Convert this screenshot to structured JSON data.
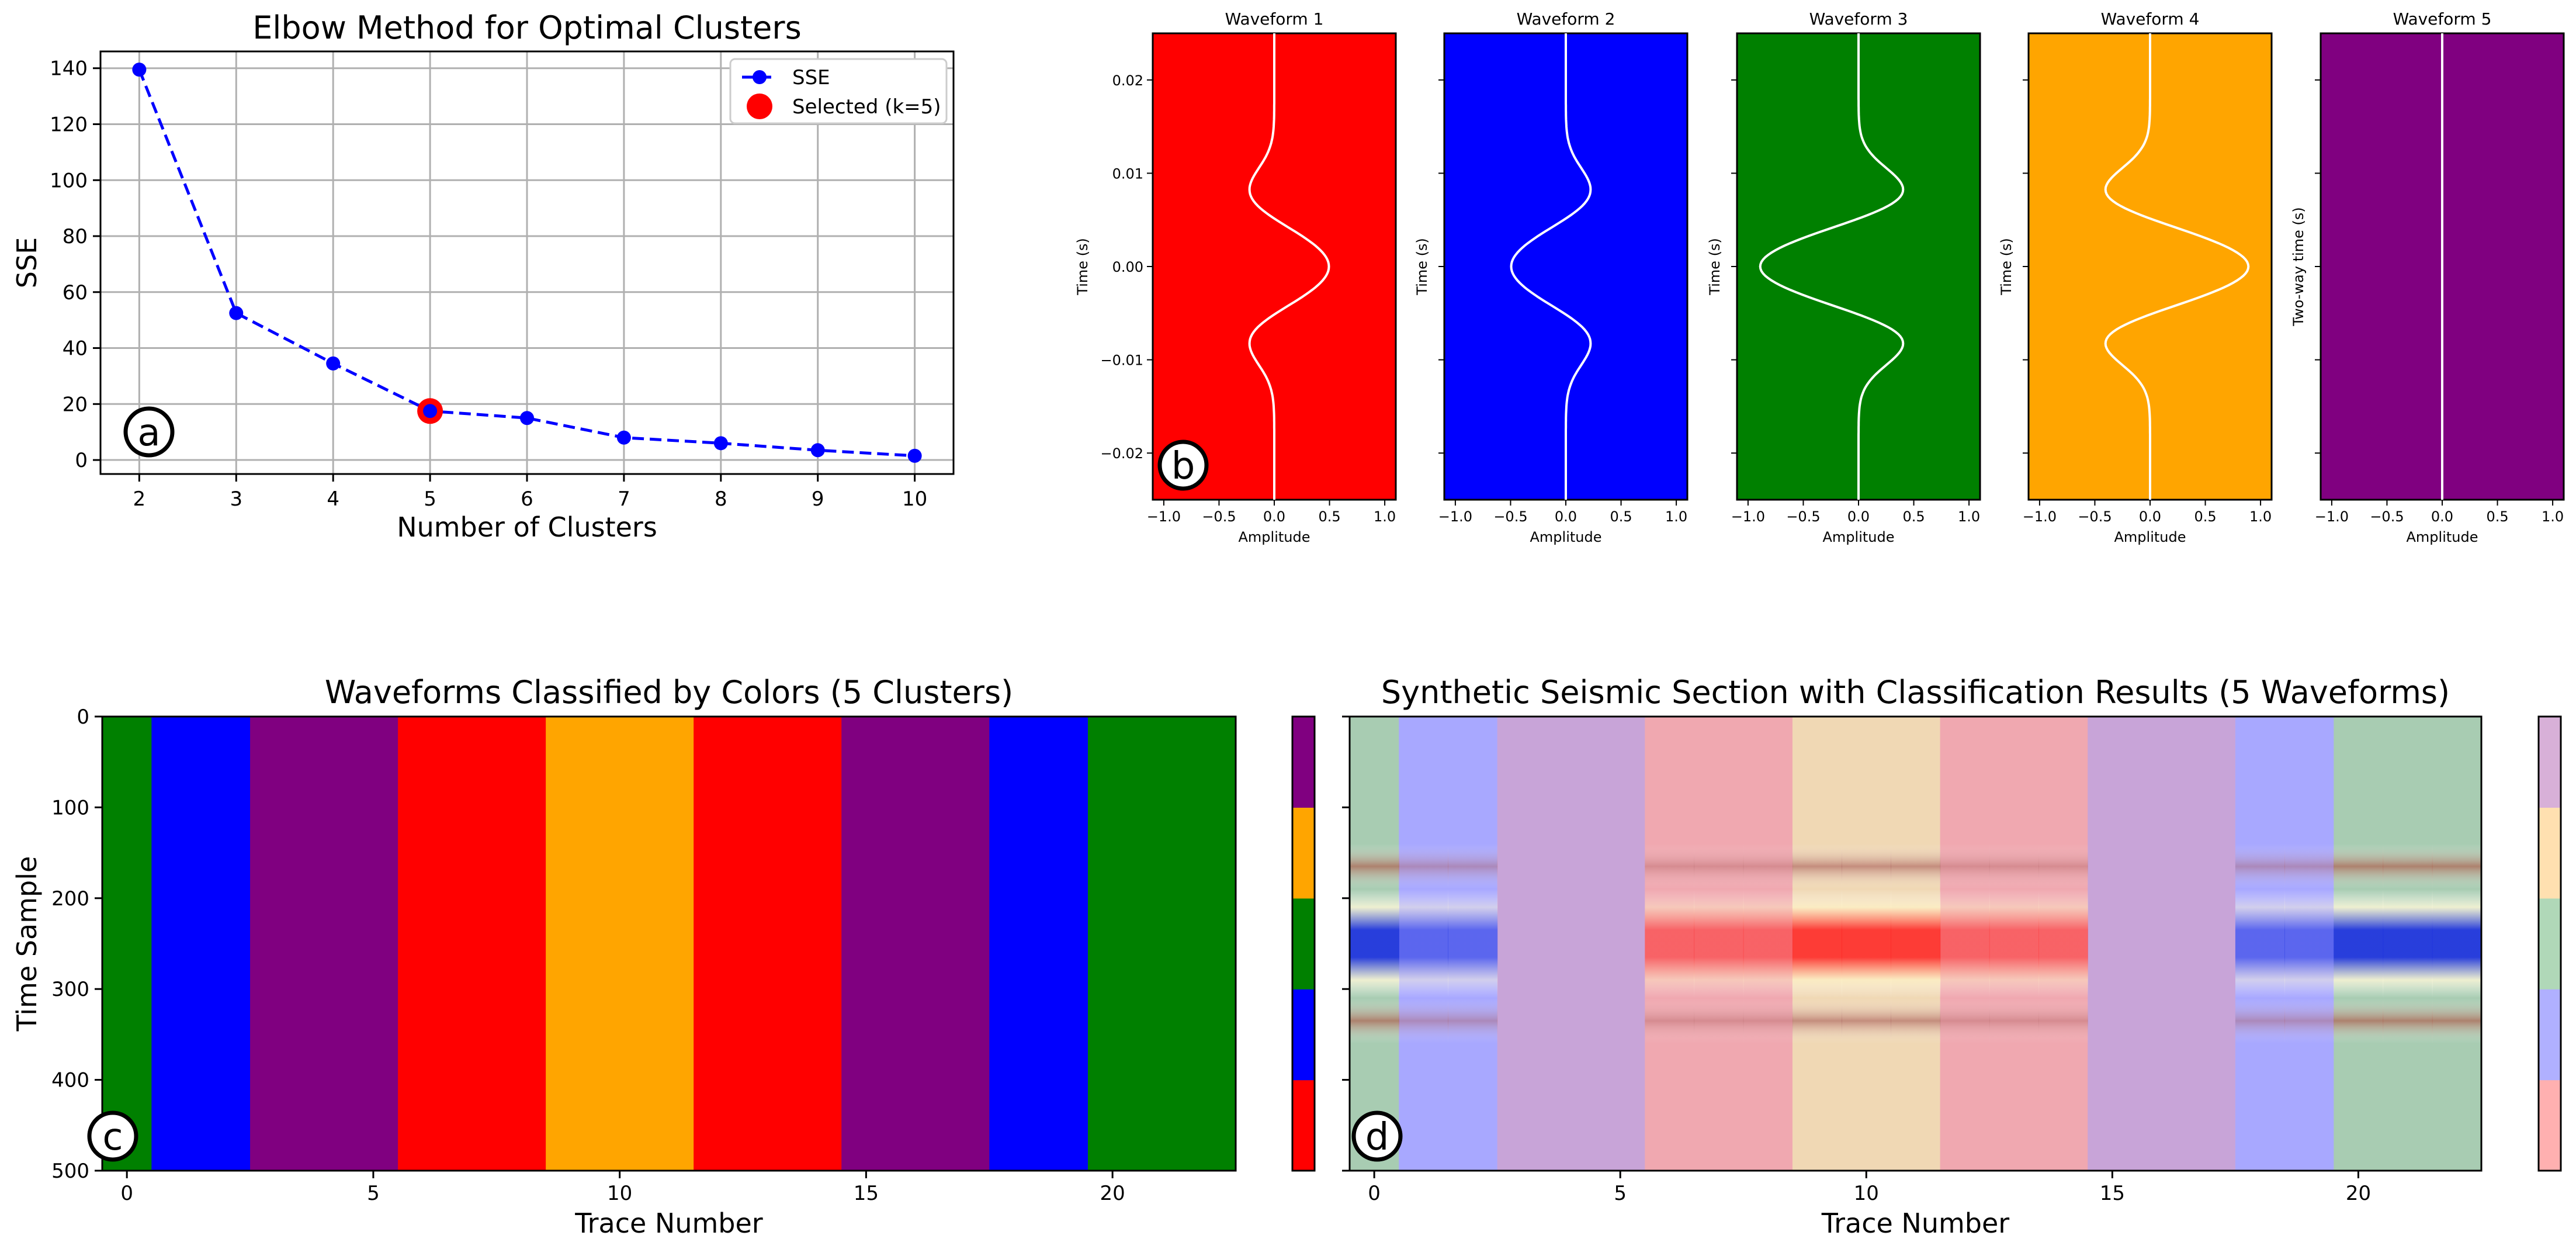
{
  "chart_data": [
    {
      "panel": "a",
      "type": "line",
      "title": "Elbow Method for Optimal Clusters",
      "xlabel": "Number of Clusters",
      "ylabel": "SSE",
      "x": [
        2,
        3,
        4,
        5,
        6,
        7,
        8,
        9,
        10
      ],
      "series": [
        {
          "name": "SSE",
          "values": [
            139.5,
            52.5,
            34.5,
            17.5,
            15,
            8,
            6,
            3.5,
            1.5
          ],
          "color": "#0000ff",
          "style": "dashed-with-dots"
        }
      ],
      "selected": {
        "name": "Selected (k=5)",
        "x": 5,
        "y": 17.5,
        "color": "#ff0000"
      },
      "xticks": [
        "2",
        "3",
        "4",
        "5",
        "6",
        "7",
        "8",
        "9",
        "10"
      ],
      "yticks": [
        "0",
        "20",
        "40",
        "60",
        "80",
        "100",
        "120",
        "140"
      ],
      "xlim": [
        1.6,
        10.4
      ],
      "ylim": [
        -5,
        146
      ],
      "grid": true,
      "legend": "top-right"
    },
    {
      "panel": "b",
      "type": "line",
      "subplots": [
        {
          "title": "Waveform 1",
          "ylabel": "Time (s)",
          "background": "#ff0000",
          "amp": 0.5
        },
        {
          "title": "Waveform 2",
          "ylabel": "Time (s)",
          "background": "#0000ff",
          "amp": -0.5
        },
        {
          "title": "Waveform 3",
          "ylabel": "Time (s)",
          "background": "#008000",
          "amp": -0.9
        },
        {
          "title": "Waveform 4",
          "ylabel": "Time (s)",
          "background": "#ffa500",
          "amp": 0.9
        },
        {
          "title": "Waveform 5",
          "ylabel": "Two-way time (s)",
          "background": "#800080",
          "amp": 0.0
        }
      ],
      "xlabel": "Amplitude",
      "xticks": [
        "−1.0",
        "−0.5",
        "0.0",
        "0.5",
        "1.0"
      ],
      "yticks": [
        "−0.02",
        "−0.01",
        "0.00",
        "0.01",
        "0.02"
      ],
      "xlim": [
        -1.1,
        1.1
      ],
      "ylim": [
        -0.025,
        0.025
      ],
      "trace_color": "#ffffff"
    },
    {
      "panel": "c",
      "type": "heatmap",
      "title": "Waveforms Classified by Colors (5 Clusters)",
      "xlabel": "Trace Number",
      "ylabel": "Time Sample",
      "trace_clusters": [
        3,
        2,
        2,
        5,
        5,
        5,
        1,
        1,
        1,
        4,
        4,
        4,
        1,
        1,
        1,
        5,
        5,
        5,
        2,
        2,
        3,
        3,
        3
      ],
      "cluster_colors": {
        "1": "#ff0000",
        "2": "#0000ff",
        "3": "#008000",
        "4": "#ffa500",
        "5": "#800080"
      },
      "colorbar": [
        "#ff0000",
        "#0000ff",
        "#008000",
        "#ffa500",
        "#800080"
      ],
      "xticks": [
        "0",
        "5",
        "10",
        "15",
        "20"
      ],
      "yticks": [
        "0",
        "100",
        "200",
        "300",
        "400",
        "500"
      ],
      "xlim": [
        -0.5,
        22.5
      ],
      "ylim": [
        500,
        0
      ]
    },
    {
      "panel": "d",
      "type": "heatmap",
      "title": "Synthetic Seismic Section with Classification Results (5 Waveforms)",
      "xlabel": "Trace Number",
      "trace_clusters": [
        3,
        2,
        2,
        5,
        5,
        5,
        1,
        1,
        1,
        4,
        4,
        4,
        1,
        1,
        1,
        5,
        5,
        5,
        2,
        2,
        3,
        3,
        3
      ],
      "cluster_colors": {
        "1": "#f0a8b0",
        "2": "#a8a8ff",
        "3": "#a8ccb2",
        "4": "#f0d8b4",
        "5": "#c8a4d8"
      },
      "colorbar": [
        "#ffb0b0",
        "#b0b0ff",
        "#b0d8b8",
        "#ffe0b0",
        "#d8b0d8"
      ],
      "seismic_amplitudes": [
        -0.9,
        -0.5,
        -0.5,
        0,
        0,
        0,
        0.5,
        0.5,
        0.5,
        0.9,
        0.9,
        0.9,
        0.5,
        0.5,
        0.5,
        0,
        0,
        0,
        -0.5,
        -0.5,
        -0.9,
        -0.9,
        -0.9
      ],
      "xticks": [
        "0",
        "5",
        "10",
        "15",
        "20"
      ],
      "xlim": [
        -0.5,
        22.5
      ],
      "ylim": [
        500,
        0
      ]
    }
  ],
  "panel_labels": [
    "a",
    "b",
    "c",
    "d"
  ]
}
